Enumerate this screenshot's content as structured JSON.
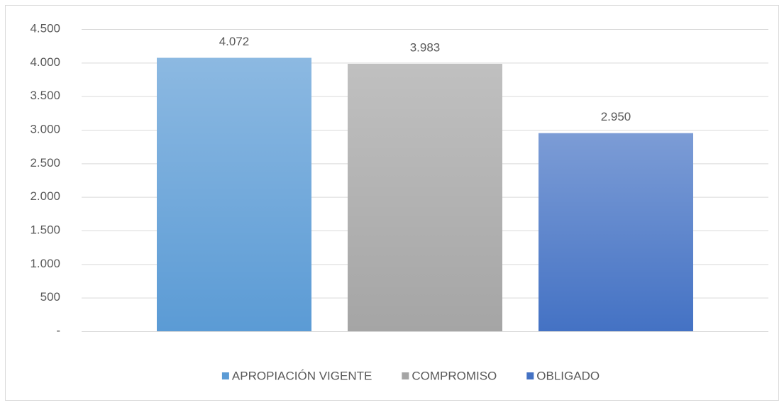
{
  "chart_data": {
    "type": "bar",
    "categories": [
      null
    ],
    "series": [
      {
        "name": "APROPIACIÓN VIGENTE",
        "color": "#5b9bd5",
        "values": [
          4072
        ],
        "value_labels": [
          "4.072"
        ]
      },
      {
        "name": "COMPROMISO",
        "color": "#a5a5a5",
        "values": [
          3983
        ],
        "value_labels": [
          "3.983"
        ]
      },
      {
        "name": "OBLIGADO",
        "color": "#4472c4",
        "values": [
          2950
        ],
        "value_labels": [
          "2.950"
        ]
      }
    ],
    "ylim": [
      0,
      4500
    ],
    "yticks": [
      {
        "value": 0,
        "label": "-"
      },
      {
        "value": 500,
        "label": "500"
      },
      {
        "value": 1000,
        "label": "1.000"
      },
      {
        "value": 1500,
        "label": "1.500"
      },
      {
        "value": 2000,
        "label": "2.000"
      },
      {
        "value": 2500,
        "label": "2.500"
      },
      {
        "value": 3000,
        "label": "3.000"
      },
      {
        "value": 3500,
        "label": "3.500"
      },
      {
        "value": 4000,
        "label": "4.000"
      },
      {
        "value": 4500,
        "label": "4.500"
      }
    ],
    "grid": true,
    "legend": "bottom"
  }
}
